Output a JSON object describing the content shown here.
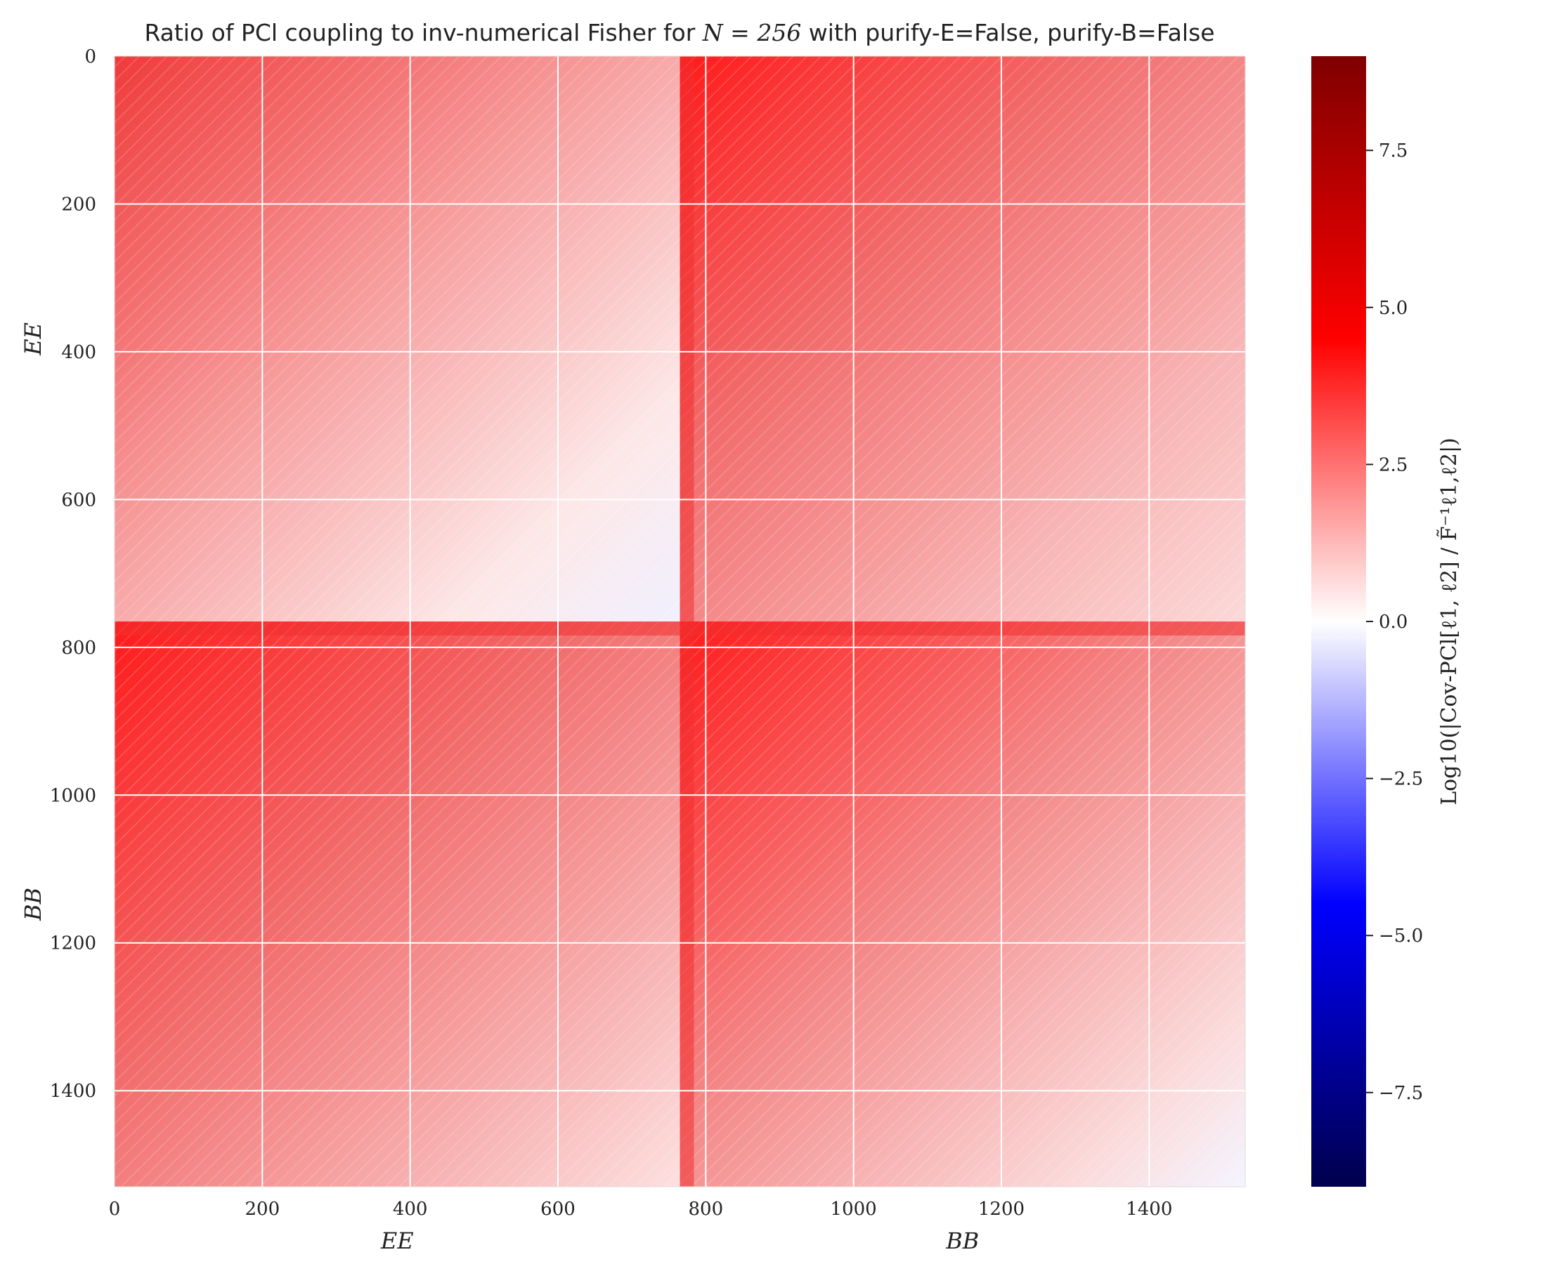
{
  "chart_data": {
    "type": "heatmap",
    "title": "Ratio of PCl coupling to inv-numerical Fisher for N = 256 with purify-E=False, purify-B=False",
    "title_parts": {
      "prefix": "Ratio of PCl coupling to inv-numerical Fisher for ",
      "n_label": "N = 256",
      "suffix": " with purify-E=False, purify-B=False"
    },
    "xlim": [
      0,
      1530
    ],
    "ylim": [
      1530,
      0
    ],
    "block_boundary": 765,
    "x_ticks": [
      "0",
      "200",
      "400",
      "600",
      "800",
      "1000",
      "1200",
      "1400"
    ],
    "x_tick_values": [
      0,
      200,
      400,
      600,
      800,
      1000,
      1200,
      1400
    ],
    "y_ticks": [
      "0",
      "200",
      "400",
      "600",
      "800",
      "1000",
      "1200",
      "1400"
    ],
    "y_tick_values": [
      0,
      200,
      400,
      600,
      800,
      1000,
      1200,
      1400
    ],
    "x_block_labels": [
      "EE",
      "BB"
    ],
    "y_block_labels": [
      "EE",
      "BB"
    ],
    "grid": true,
    "colorbar": {
      "label": "Log10(|Cov-PCl[ℓ1, ℓ2] / F̃⁻¹ℓ1,ℓ2|)",
      "range": [
        -9,
        9
      ],
      "ticks": [
        "7.5",
        "5.0",
        "2.5",
        "0.0",
        "−2.5",
        "−5.0",
        "−7.5"
      ],
      "tick_values": [
        7.5,
        5.0,
        2.5,
        0.0,
        -2.5,
        -5.0,
        -7.5
      ],
      "colormap": [
        "#00004c",
        "#0000ff",
        "#ffffff",
        "#ff0000",
        "#7f0000"
      ]
    }
  }
}
